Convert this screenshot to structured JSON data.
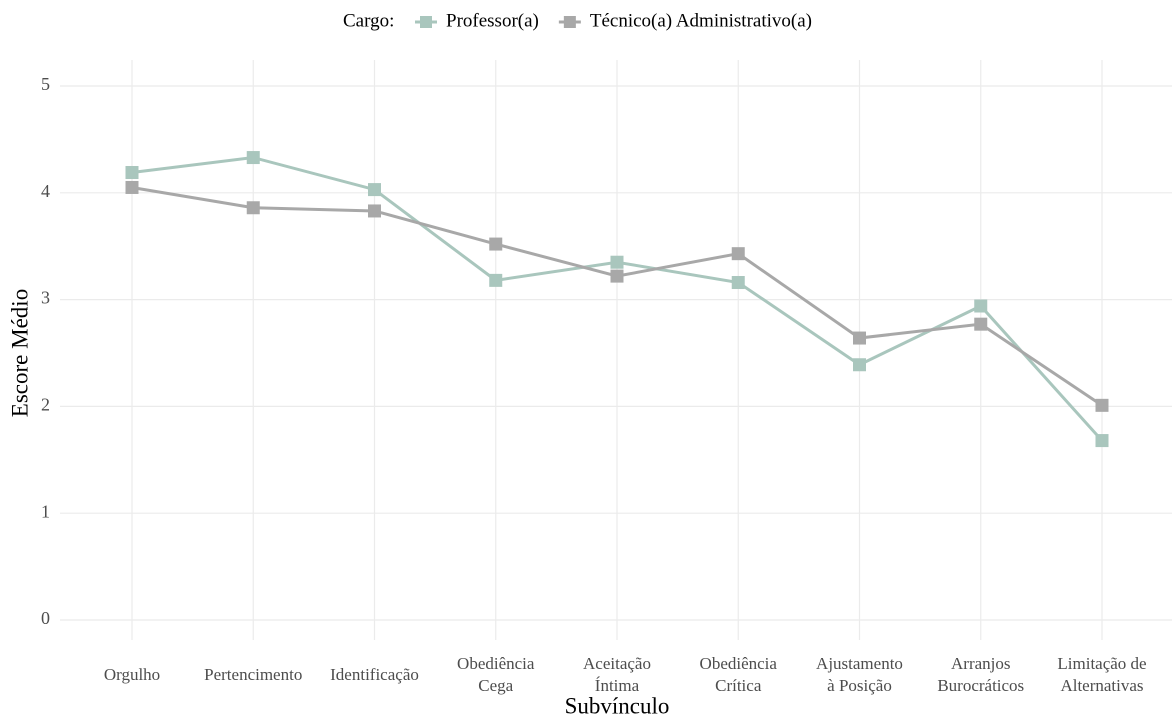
{
  "chart_data": {
    "type": "line",
    "legend_title": "Cargo:",
    "x_label": "Subvínculo",
    "y_label": "Escore Médio",
    "categories": [
      "Orgulho",
      "Pertencimento",
      "Identificação",
      "Obediência\nCega",
      "Aceitação\nÍntima",
      "Obediência\nCrítica",
      "Ajustamento\nà Posição",
      "Arranjos\nBurocráticos",
      "Limitação de\nAlternativas"
    ],
    "series": [
      {
        "name": "Professor(a)",
        "color": "#a9c6bd",
        "values": [
          4.19,
          4.33,
          4.03,
          3.18,
          3.35,
          3.16,
          2.39,
          2.94,
          1.68
        ]
      },
      {
        "name": "Técnico(a) Administrativo(a)",
        "color": "#a8a8a8",
        "values": [
          4.05,
          3.86,
          3.83,
          3.52,
          3.22,
          3.43,
          2.64,
          2.77,
          2.01
        ]
      }
    ],
    "ylim": [
      0,
      5
    ],
    "yticks": [
      0,
      1,
      2,
      3,
      4,
      5
    ],
    "grid": true,
    "legend_position": "top"
  }
}
